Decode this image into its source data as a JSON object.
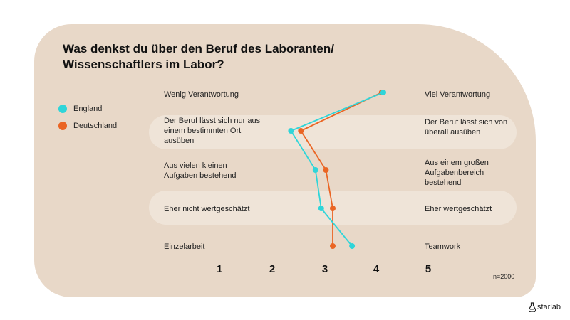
{
  "title": "Was denkst du über den Beruf des Laboranten/ Wissenschaftlers im Labor?",
  "note": "n=2000",
  "brand": "starlab",
  "colors": {
    "England": "#2fd5d9",
    "Deutschland": "#ea6524",
    "card": "#e8d8c8",
    "band": "#efe4d8"
  },
  "chart_data": {
    "type": "line",
    "title": "Was denkst du über den Beruf des Laboranten/ Wissenschaftlers im Labor?",
    "orientation": "horizontal-profile",
    "x_ticks": [
      1,
      2,
      3,
      4,
      5
    ],
    "xlim": [
      1,
      5
    ],
    "left_labels": [
      "Wenig Verantwortung",
      "Der Beruf lässt sich nur aus einem bestimmten Ort ausüben",
      "Aus vielen kleinen Aufgaben bestehend",
      "Eher nicht wertgeschätzt",
      "Einzelarbeit"
    ],
    "right_labels": [
      "Viel Verantwortung",
      "Der Beruf lässt sich von überall ausüben",
      "Aus einem großen Aufgabenbereich bestehend",
      "Eher wertgeschätzt",
      "Teamwork"
    ],
    "series": [
      {
        "name": "England",
        "color": "#2fd5d9",
        "values": [
          4.14,
          2.37,
          2.84,
          2.95,
          3.54
        ]
      },
      {
        "name": "Deutschland",
        "color": "#ea6524",
        "values": [
          4.11,
          2.56,
          3.04,
          3.17,
          3.17
        ]
      }
    ],
    "legend": "left",
    "note": "n=2000"
  }
}
